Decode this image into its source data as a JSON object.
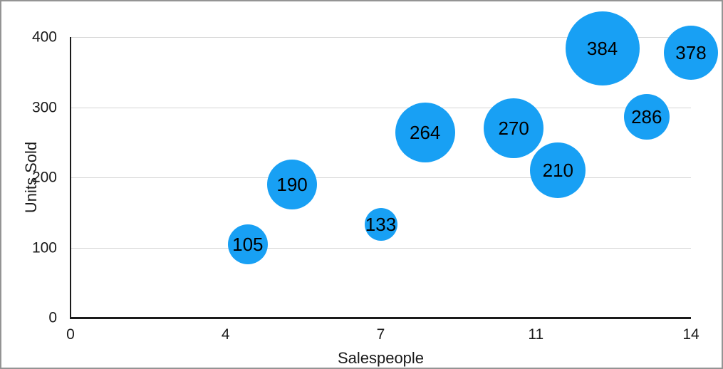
{
  "figure": {
    "background": "#ffffff",
    "border_color": "#949494"
  },
  "chart_data": {
    "type": "scatter",
    "variant": "bubble",
    "title": "",
    "xlabel": "Salespeople",
    "ylabel": "Units Sold",
    "xlim": [
      0,
      14
    ],
    "ylim": [
      0,
      400
    ],
    "grid": "horizontal-only",
    "legend": "none",
    "bubble_color": "#18a0f4",
    "label_color": "#000000",
    "gridline_color": "#d6d6d6",
    "axis_color": "#1a1a1a",
    "x_ticks": [
      {
        "label": "0",
        "value": 0
      },
      {
        "label": "4",
        "value": 3.5
      },
      {
        "label": "7",
        "value": 7
      },
      {
        "label": "11",
        "value": 10.5
      },
      {
        "label": "14",
        "value": 14
      }
    ],
    "y_ticks": [
      {
        "label": "0",
        "value": 0
      },
      {
        "label": "100",
        "value": 100
      },
      {
        "label": "200",
        "value": 200
      },
      {
        "label": "300",
        "value": 300
      },
      {
        "label": "400",
        "value": 400
      }
    ],
    "points": [
      {
        "x": 4,
        "y": 105,
        "label": "105",
        "radius_px": 28
      },
      {
        "x": 5,
        "y": 190,
        "label": "190",
        "radius_px": 35
      },
      {
        "x": 7,
        "y": 133,
        "label": "133",
        "radius_px": 23
      },
      {
        "x": 8,
        "y": 264,
        "label": "264",
        "radius_px": 42
      },
      {
        "x": 10,
        "y": 270,
        "label": "270",
        "radius_px": 42
      },
      {
        "x": 11,
        "y": 210,
        "label": "210",
        "radius_px": 39
      },
      {
        "x": 12,
        "y": 384,
        "label": "384",
        "radius_px": 52
      },
      {
        "x": 13,
        "y": 286,
        "label": "286",
        "radius_px": 32
      },
      {
        "x": 14,
        "y": 378,
        "label": "378",
        "radius_px": 38
      }
    ]
  }
}
